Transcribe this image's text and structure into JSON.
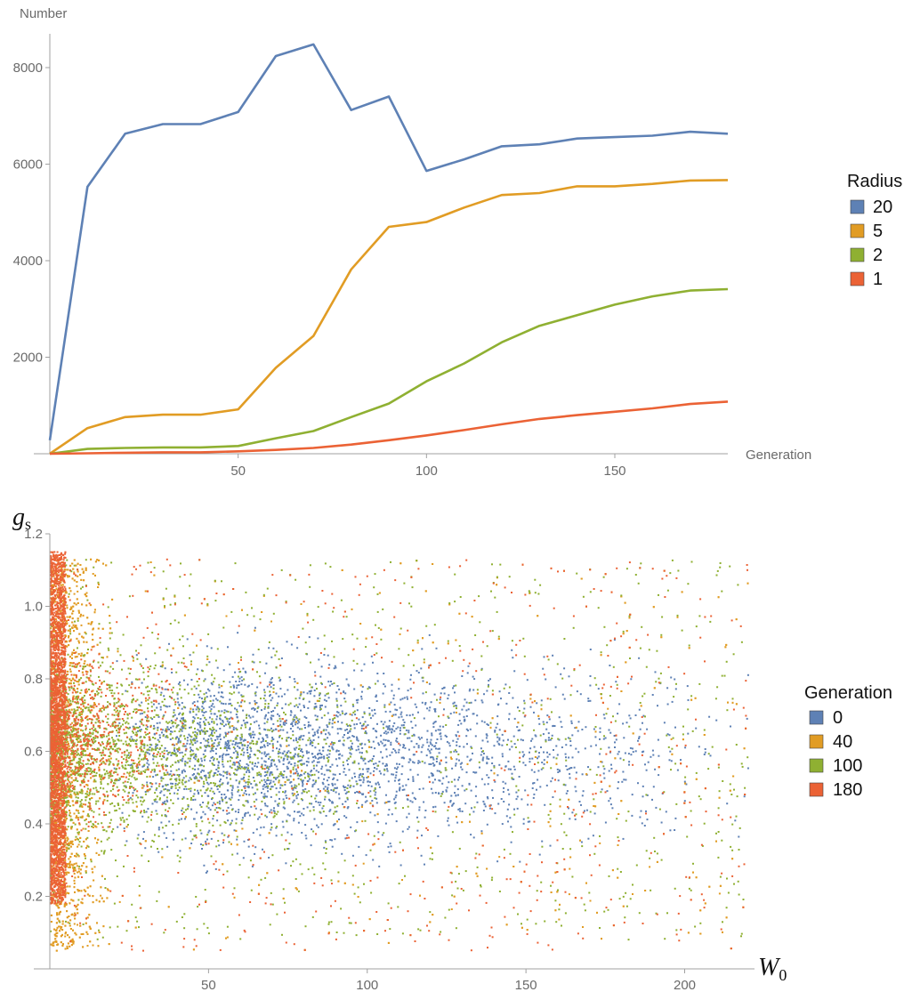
{
  "chart_data": [
    {
      "type": "line",
      "title": "",
      "xlabel": "Generation",
      "ylabel": "Number",
      "xlim": [
        0,
        180
      ],
      "ylim": [
        0,
        8700
      ],
      "xticks": [
        50,
        100,
        150
      ],
      "yticks": [
        2000,
        4000,
        6000,
        8000
      ],
      "grid": false,
      "legend": {
        "title": "Radius",
        "placement": "right"
      },
      "x": [
        0,
        10,
        20,
        30,
        40,
        50,
        60,
        70,
        80,
        90,
        100,
        110,
        120,
        130,
        140,
        150,
        160,
        170,
        180
      ],
      "series": [
        {
          "name": "20",
          "color": "#5E81B5",
          "values": [
            280,
            5530,
            6630,
            6830,
            6830,
            7080,
            8240,
            8480,
            7120,
            7400,
            5860,
            6100,
            6370,
            6410,
            6530,
            6560,
            6590,
            6670,
            6630
          ]
        },
        {
          "name": "5",
          "color": "#E19C24",
          "values": [
            0,
            530,
            760,
            810,
            810,
            920,
            1780,
            2440,
            3820,
            4700,
            4800,
            5100,
            5360,
            5400,
            5540,
            5540,
            5590,
            5660,
            5670
          ]
        },
        {
          "name": "2",
          "color": "#8FB032",
          "values": [
            0,
            100,
            120,
            130,
            130,
            160,
            320,
            470,
            760,
            1040,
            1500,
            1870,
            2310,
            2650,
            2870,
            3090,
            3260,
            3380,
            3410
          ]
        },
        {
          "name": "1",
          "color": "#EB6235",
          "values": [
            0,
            10,
            20,
            30,
            30,
            50,
            80,
            120,
            190,
            280,
            380,
            490,
            610,
            720,
            800,
            870,
            940,
            1030,
            1080
          ]
        }
      ]
    },
    {
      "type": "scatter",
      "title": "",
      "xlabel": "W",
      "xlabel_sub": "0",
      "ylabel": "g",
      "ylabel_sub": "s",
      "xlim": [
        0,
        222
      ],
      "ylim": [
        0,
        1.2
      ],
      "xticks": [
        50,
        100,
        150,
        200
      ],
      "yticks": [
        0.2,
        0.4,
        0.6,
        0.8,
        1.0,
        1.2
      ],
      "ytick_labels": [
        "0.2",
        "0.4",
        "0.6",
        "0.8",
        "1.0",
        "1.2"
      ],
      "grid": false,
      "legend": {
        "title": "Generation",
        "placement": "right"
      },
      "y_range_of_points": [
        0.0,
        1.15
      ],
      "series": [
        {
          "name": "0",
          "color": "#5E81B5",
          "point_count": 2600,
          "x_distribution": "broad, densest near 60-80, decaying to 220"
        },
        {
          "name": "40",
          "color": "#E19C24",
          "point_count": 3000,
          "x_distribution": "concentrated 0-30, tail to 220"
        },
        {
          "name": "100",
          "color": "#8FB032",
          "point_count": 2600,
          "x_distribution": "concentrated 0-100, tail to 220"
        },
        {
          "name": "180",
          "color": "#EB6235",
          "point_count": 3600,
          "x_distribution": "very dense band at 0-5, sparse tail to 220"
        }
      ]
    }
  ]
}
